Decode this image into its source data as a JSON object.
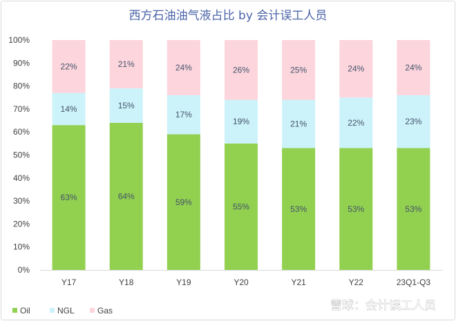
{
  "chart_data": {
    "type": "bar",
    "stacked": true,
    "title": "西方石油油气液占比 by 会计误工人员",
    "categories": [
      "Y17",
      "Y18",
      "Y19",
      "Y20",
      "Y21",
      "Y22",
      "23Q1-Q3"
    ],
    "series": [
      {
        "name": "Oil",
        "values": [
          63,
          64,
          59,
          55,
          53,
          53,
          53
        ],
        "labels": [
          "63%",
          "64%",
          "59%",
          "55%",
          "53%",
          "53%",
          "53%"
        ],
        "color": "#92d050"
      },
      {
        "name": "NGL",
        "values": [
          14,
          15,
          17,
          19,
          21,
          22,
          23
        ],
        "labels": [
          "14%",
          "15%",
          "17%",
          "19%",
          "21%",
          "22%",
          "23%"
        ],
        "color": "#ccf2fa"
      },
      {
        "name": "Gas",
        "values": [
          22,
          21,
          24,
          26,
          25,
          24,
          24
        ],
        "labels": [
          "22%",
          "21%",
          "24%",
          "26%",
          "25%",
          "24%",
          "24%"
        ],
        "color": "#fdd5dd"
      }
    ],
    "yticks": [
      "0%",
      "10%",
      "20%",
      "30%",
      "40%",
      "50%",
      "60%",
      "70%",
      "80%",
      "90%",
      "100%"
    ],
    "ylim": [
      0,
      100
    ],
    "grid": false,
    "legend": "bottom-left"
  },
  "watermark": {
    "text": "雪球：会计误工人员",
    "icon": "snowball-logo-icon"
  }
}
